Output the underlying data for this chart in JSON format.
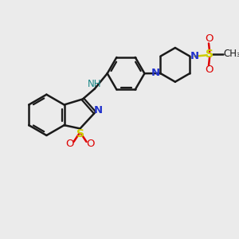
{
  "bg_color": "#ebebeb",
  "bond_color": "#1a1a1a",
  "n_color": "#2233cc",
  "s_color": "#cccc00",
  "o_color": "#dd0000",
  "nh_color": "#1a8888",
  "lw": 1.8,
  "dbo": 0.055,
  "figsize": [
    3.0,
    3.0
  ],
  "dpi": 100,
  "xlim": [
    0,
    10
  ],
  "ylim": [
    0,
    10
  ]
}
